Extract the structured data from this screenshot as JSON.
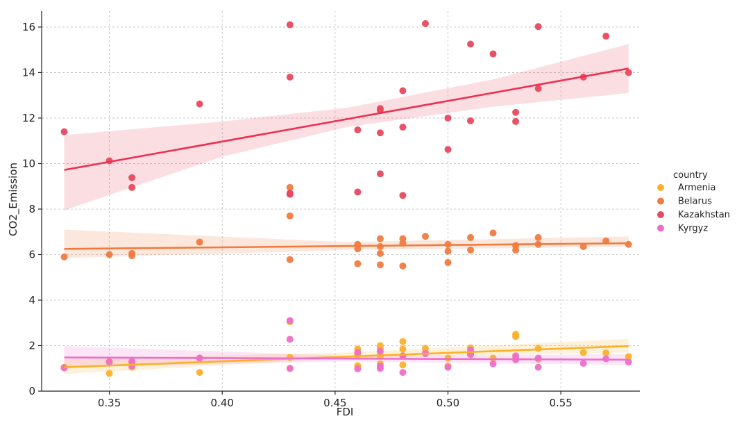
{
  "chart_data": {
    "type": "scatter",
    "title": "",
    "xlabel": "FDI",
    "ylabel": "CO2_Emission",
    "xlim": [
      0.32,
      0.585
    ],
    "ylim": [
      0,
      16.7
    ],
    "xticks": [
      0.35,
      0.4,
      0.45,
      0.5,
      0.55
    ],
    "xtick_labels": [
      "0.35",
      "0.40",
      "0.45",
      "0.50",
      "0.55"
    ],
    "yticks": [
      0,
      2,
      4,
      6,
      8,
      10,
      12,
      14,
      16
    ],
    "ytick_labels": [
      "0",
      "2",
      "4",
      "6",
      "8",
      "10",
      "12",
      "14",
      "16"
    ],
    "grid": true,
    "legend": {
      "title": "country",
      "position": "right"
    },
    "series": [
      {
        "name": "Armenia",
        "color": "#FBB02A",
        "regression": {
          "x": [
            0.33,
            0.58
          ],
          "y": [
            1.05,
            1.98
          ]
        },
        "band": {
          "x": [
            0.33,
            0.455,
            0.58
          ],
          "lower": [
            0.75,
            1.45,
            1.7
          ],
          "upper": [
            1.4,
            1.7,
            2.3
          ]
        },
        "points": [
          [
            0.33,
            1.05
          ],
          [
            0.35,
            0.78
          ],
          [
            0.35,
            1.3
          ],
          [
            0.36,
            1.05
          ],
          [
            0.36,
            1.25
          ],
          [
            0.39,
            0.82
          ],
          [
            0.39,
            1.45
          ],
          [
            0.43,
            1.0
          ],
          [
            0.43,
            1.48
          ],
          [
            0.43,
            3.05
          ],
          [
            0.46,
            1.12
          ],
          [
            0.46,
            1.6
          ],
          [
            0.46,
            1.85
          ],
          [
            0.47,
            1.2
          ],
          [
            0.47,
            1.55
          ],
          [
            0.47,
            1.85
          ],
          [
            0.47,
            2.0
          ],
          [
            0.48,
            1.15
          ],
          [
            0.48,
            1.55
          ],
          [
            0.48,
            1.85
          ],
          [
            0.48,
            2.18
          ],
          [
            0.49,
            1.7
          ],
          [
            0.49,
            1.88
          ],
          [
            0.5,
            1.1
          ],
          [
            0.5,
            1.45
          ],
          [
            0.51,
            1.6
          ],
          [
            0.51,
            1.9
          ],
          [
            0.52,
            1.45
          ],
          [
            0.53,
            1.45
          ],
          [
            0.53,
            2.4
          ],
          [
            0.53,
            2.5
          ],
          [
            0.54,
            1.4
          ],
          [
            0.54,
            1.88
          ],
          [
            0.56,
            1.7
          ],
          [
            0.57,
            1.68
          ],
          [
            0.58,
            1.52
          ]
        ]
      },
      {
        "name": "Belarus",
        "color": "#F07B3F",
        "regression": {
          "x": [
            0.33,
            0.58
          ],
          "y": [
            6.25,
            6.5
          ]
        },
        "band": {
          "x": [
            0.33,
            0.455,
            0.58
          ],
          "lower": [
            5.85,
            6.2,
            6.35
          ],
          "upper": [
            7.1,
            6.55,
            6.8
          ]
        },
        "points": [
          [
            0.33,
            5.9
          ],
          [
            0.35,
            6.0
          ],
          [
            0.36,
            5.95
          ],
          [
            0.36,
            6.05
          ],
          [
            0.39,
            6.55
          ],
          [
            0.43,
            5.78
          ],
          [
            0.43,
            7.7
          ],
          [
            0.43,
            8.95
          ],
          [
            0.46,
            5.6
          ],
          [
            0.46,
            6.25
          ],
          [
            0.46,
            6.45
          ],
          [
            0.47,
            5.55
          ],
          [
            0.47,
            6.05
          ],
          [
            0.47,
            6.35
          ],
          [
            0.47,
            6.7
          ],
          [
            0.48,
            5.5
          ],
          [
            0.48,
            6.5
          ],
          [
            0.48,
            6.7
          ],
          [
            0.49,
            6.8
          ],
          [
            0.5,
            5.65
          ],
          [
            0.5,
            6.15
          ],
          [
            0.5,
            6.45
          ],
          [
            0.51,
            6.2
          ],
          [
            0.51,
            6.75
          ],
          [
            0.52,
            6.95
          ],
          [
            0.53,
            6.2
          ],
          [
            0.53,
            6.4
          ],
          [
            0.54,
            6.45
          ],
          [
            0.54,
            6.75
          ],
          [
            0.56,
            6.35
          ],
          [
            0.57,
            6.6
          ],
          [
            0.58,
            6.45
          ]
        ]
      },
      {
        "name": "Kazakhstan",
        "color": "#E8495E",
        "line_color": "#EE3052",
        "regression": {
          "x": [
            0.33,
            0.58
          ],
          "y": [
            9.72,
            14.18
          ]
        },
        "band": {
          "x": [
            0.33,
            0.4,
            0.455,
            0.52,
            0.58
          ],
          "lower": [
            7.95,
            10.3,
            11.6,
            12.5,
            13.1
          ],
          "upper": [
            11.25,
            11.85,
            12.45,
            13.7,
            15.25
          ]
        },
        "points": [
          [
            0.33,
            11.4
          ],
          [
            0.35,
            10.12
          ],
          [
            0.36,
            8.95
          ],
          [
            0.36,
            9.38
          ],
          [
            0.39,
            12.62
          ],
          [
            0.43,
            8.65
          ],
          [
            0.43,
            8.7
          ],
          [
            0.43,
            13.8
          ],
          [
            0.43,
            16.1
          ],
          [
            0.46,
            8.75
          ],
          [
            0.46,
            11.48
          ],
          [
            0.47,
            9.55
          ],
          [
            0.47,
            11.35
          ],
          [
            0.47,
            12.35
          ],
          [
            0.47,
            12.42
          ],
          [
            0.48,
            8.6
          ],
          [
            0.48,
            11.6
          ],
          [
            0.48,
            13.2
          ],
          [
            0.49,
            16.15
          ],
          [
            0.5,
            10.62
          ],
          [
            0.5,
            12.0
          ],
          [
            0.51,
            11.88
          ],
          [
            0.51,
            15.25
          ],
          [
            0.52,
            14.82
          ],
          [
            0.53,
            11.85
          ],
          [
            0.53,
            12.25
          ],
          [
            0.54,
            13.3
          ],
          [
            0.54,
            16.02
          ],
          [
            0.56,
            13.8
          ],
          [
            0.57,
            15.6
          ],
          [
            0.58,
            14.0
          ]
        ]
      },
      {
        "name": "Kyrgyz",
        "color": "#EE6FCB",
        "regression": {
          "x": [
            0.33,
            0.58
          ],
          "y": [
            1.48,
            1.38
          ]
        },
        "band": {
          "x": [
            0.33,
            0.455,
            0.58
          ],
          "lower": [
            1.05,
            1.3,
            1.15
          ],
          "upper": [
            1.98,
            1.55,
            1.62
          ]
        },
        "points": [
          [
            0.33,
            1.02
          ],
          [
            0.35,
            1.28
          ],
          [
            0.36,
            1.12
          ],
          [
            0.36,
            1.3
          ],
          [
            0.39,
            1.45
          ],
          [
            0.43,
            1.0
          ],
          [
            0.43,
            2.28
          ],
          [
            0.43,
            3.1
          ],
          [
            0.46,
            0.98
          ],
          [
            0.46,
            1.7
          ],
          [
            0.47,
            1.0
          ],
          [
            0.47,
            1.1
          ],
          [
            0.47,
            1.75
          ],
          [
            0.48,
            0.82
          ],
          [
            0.48,
            1.55
          ],
          [
            0.49,
            1.65
          ],
          [
            0.5,
            1.05
          ],
          [
            0.51,
            1.62
          ],
          [
            0.51,
            1.8
          ],
          [
            0.52,
            1.2
          ],
          [
            0.53,
            1.38
          ],
          [
            0.53,
            1.55
          ],
          [
            0.54,
            1.05
          ],
          [
            0.54,
            1.45
          ],
          [
            0.56,
            1.22
          ],
          [
            0.57,
            1.42
          ],
          [
            0.58,
            1.28
          ]
        ]
      }
    ]
  }
}
